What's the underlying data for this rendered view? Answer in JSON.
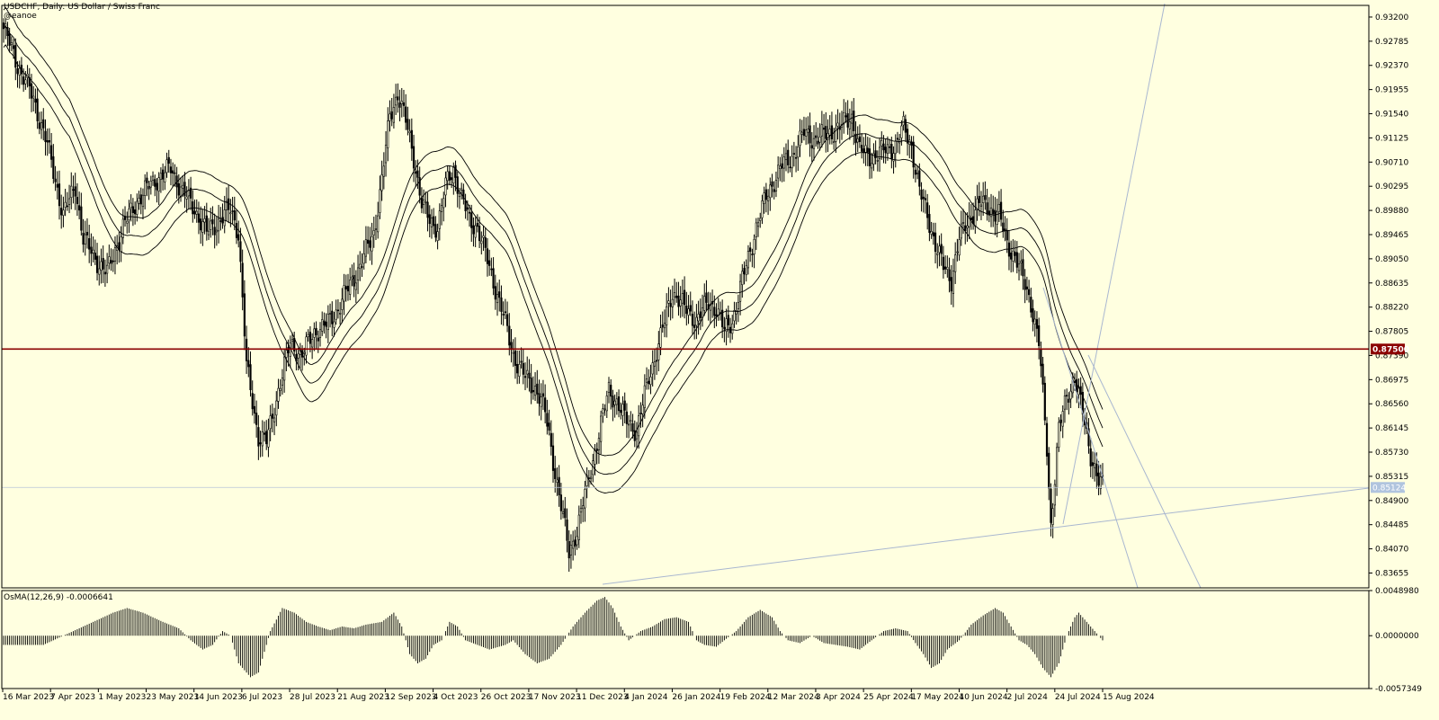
{
  "header": {
    "title": "USDCHF, Daily:  US Dollar / Swiss Franc",
    "author": "@eanoe"
  },
  "osma": {
    "label": "OsMA(12,26,9) -0.0006641"
  },
  "colors": {
    "background": "#ffffe0",
    "candle": "#000000",
    "level_line": "#8b0000",
    "level_badge": "#8b0000",
    "price_badge": "#b0c4de",
    "trendline": "#a9b7d0"
  },
  "chart_data": [
    {
      "type": "candlestick",
      "title": "USDCHF, Daily:  US Dollar / Swiss Franc",
      "ylim": [
        0.834,
        0.934
      ],
      "y_ticks": [
        "0.93200",
        "0.92785",
        "0.92370",
        "0.91955",
        "0.91540",
        "0.91125",
        "0.90710",
        "0.90295",
        "0.89880",
        "0.89465",
        "0.89050",
        "0.88635",
        "0.88220",
        "0.87805",
        "0.87390",
        "0.86975",
        "0.86560",
        "0.86145",
        "0.85730",
        "0.85315",
        "0.84900",
        "0.84485",
        "0.84070",
        "0.83655"
      ],
      "x_ticks": [
        "16 Mar 2023",
        "7 Apr 2023",
        "1 May 2023",
        "23 May 2023",
        "14 Jun 2023",
        "6 Jul 2023",
        "28 Jul 2023",
        "21 Aug 2023",
        "12 Sep 2023",
        "4 Oct 2023",
        "26 Oct 2023",
        "17 Nov 2023",
        "11 Dec 2023",
        "4 Jan 2024",
        "26 Jan 2024",
        "19 Feb 2024",
        "12 Mar 2024",
        "3 Apr 2024",
        "25 Apr 2024",
        "17 May 2024",
        "10 Jun 2024",
        "2 Jul 2024",
        "24 Jul 2024",
        "15 Aug 2024"
      ],
      "level_line": {
        "value": 0.875,
        "label": "0.87500"
      },
      "current_price": {
        "value": 0.85124,
        "label": "0.85124"
      },
      "close_path": [
        [
          0,
          0.93
        ],
        [
          8,
          0.923
        ],
        [
          15,
          0.918
        ],
        [
          22,
          0.91
        ],
        [
          30,
          0.898
        ],
        [
          36,
          0.903
        ],
        [
          40,
          0.894
        ],
        [
          45,
          0.891
        ],
        [
          52,
          0.888
        ],
        [
          56,
          0.892
        ],
        [
          60,
          0.896
        ],
        [
          68,
          0.901
        ],
        [
          76,
          0.904
        ],
        [
          84,
          0.906
        ],
        [
          90,
          0.902
        ],
        [
          96,
          0.899
        ],
        [
          102,
          0.895
        ],
        [
          108,
          0.897
        ],
        [
          114,
          0.899
        ],
        [
          118,
          0.895
        ],
        [
          122,
          0.872
        ],
        [
          128,
          0.86
        ],
        [
          132,
          0.859
        ],
        [
          138,
          0.868
        ],
        [
          144,
          0.876
        ],
        [
          150,
          0.874
        ],
        [
          156,
          0.878
        ],
        [
          162,
          0.879
        ],
        [
          168,
          0.882
        ],
        [
          174,
          0.886
        ],
        [
          180,
          0.89
        ],
        [
          186,
          0.895
        ],
        [
          190,
          0.904
        ],
        [
          194,
          0.915
        ],
        [
          198,
          0.919
        ],
        [
          202,
          0.914
        ],
        [
          206,
          0.908
        ],
        [
          210,
          0.9
        ],
        [
          214,
          0.897
        ],
        [
          218,
          0.896
        ],
        [
          222,
          0.903
        ],
        [
          226,
          0.906
        ],
        [
          230,
          0.901
        ],
        [
          234,
          0.897
        ],
        [
          238,
          0.896
        ],
        [
          244,
          0.889
        ],
        [
          250,
          0.882
        ],
        [
          256,
          0.874
        ],
        [
          262,
          0.87
        ],
        [
          268,
          0.868
        ],
        [
          272,
          0.864
        ],
        [
          276,
          0.856
        ],
        [
          280,
          0.848
        ],
        [
          284,
          0.84
        ],
        [
          288,
          0.844
        ],
        [
          292,
          0.85
        ],
        [
          296,
          0.856
        ],
        [
          300,
          0.862
        ],
        [
          304,
          0.868
        ],
        [
          308,
          0.866
        ],
        [
          312,
          0.863
        ],
        [
          318,
          0.861
        ],
        [
          324,
          0.87
        ],
        [
          330,
          0.877
        ],
        [
          336,
          0.885
        ],
        [
          342,
          0.882
        ],
        [
          348,
          0.88
        ],
        [
          354,
          0.883
        ],
        [
          358,
          0.882
        ],
        [
          362,
          0.878
        ],
        [
          366,
          0.88
        ],
        [
          372,
          0.888
        ],
        [
          378,
          0.896
        ],
        [
          384,
          0.902
        ],
        [
          390,
          0.906
        ],
        [
          396,
          0.908
        ],
        [
          402,
          0.912
        ],
        [
          408,
          0.911
        ],
        [
          414,
          0.912
        ],
        [
          420,
          0.913
        ],
        [
          426,
          0.915
        ],
        [
          430,
          0.909
        ],
        [
          436,
          0.908
        ],
        [
          442,
          0.909
        ],
        [
          448,
          0.91
        ],
        [
          452,
          0.913
        ],
        [
          456,
          0.91
        ],
        [
          460,
          0.902
        ],
        [
          464,
          0.898
        ],
        [
          468,
          0.893
        ],
        [
          472,
          0.889
        ],
        [
          476,
          0.887
        ],
        [
          480,
          0.894
        ],
        [
          486,
          0.898
        ],
        [
          490,
          0.9
        ],
        [
          496,
          0.899
        ],
        [
          500,
          0.898
        ],
        [
          504,
          0.893
        ],
        [
          508,
          0.891
        ],
        [
          512,
          0.887
        ],
        [
          516,
          0.883
        ],
        [
          520,
          0.876
        ],
        [
          524,
          0.858
        ],
        [
          526,
          0.845
        ],
        [
          530,
          0.861
        ],
        [
          534,
          0.867
        ],
        [
          538,
          0.87
        ],
        [
          542,
          0.864
        ],
        [
          546,
          0.857
        ],
        [
          550,
          0.852
        ],
        [
          552,
          0.8512
        ]
      ],
      "bands": {
        "periods": 34,
        "offsets": [
          -0.0032,
          0,
          0.0032
        ]
      }
    },
    {
      "type": "histogram",
      "title": "OsMA(12,26,9) -0.0006641",
      "ylim": [
        -0.0057349,
        0.004898
      ],
      "y_ticks": [
        "0.0048980",
        "0.0000000",
        "-0.0057349"
      ],
      "value_path": [
        [
          0,
          -0.001
        ],
        [
          20,
          -0.001
        ],
        [
          35,
          0.0005
        ],
        [
          45,
          0.0015
        ],
        [
          55,
          0.0025
        ],
        [
          62,
          0.003
        ],
        [
          70,
          0.0025
        ],
        [
          80,
          0.0015
        ],
        [
          88,
          0.0008
        ],
        [
          94,
          -0.0005
        ],
        [
          100,
          -0.0015
        ],
        [
          105,
          -0.001
        ],
        [
          110,
          0.0005
        ],
        [
          114,
          0.0
        ],
        [
          118,
          -0.003
        ],
        [
          124,
          -0.0045
        ],
        [
          128,
          -0.004
        ],
        [
          134,
          0.0005
        ],
        [
          140,
          0.003
        ],
        [
          146,
          0.0025
        ],
        [
          152,
          0.0015
        ],
        [
          158,
          0.001
        ],
        [
          164,
          0.0006
        ],
        [
          170,
          0.001
        ],
        [
          176,
          0.0008
        ],
        [
          182,
          0.0012
        ],
        [
          190,
          0.0015
        ],
        [
          196,
          0.0025
        ],
        [
          200,
          0.001
        ],
        [
          204,
          -0.002
        ],
        [
          208,
          -0.003
        ],
        [
          212,
          -0.0025
        ],
        [
          216,
          -0.001
        ],
        [
          220,
          -0.0005
        ],
        [
          224,
          0.0015
        ],
        [
          228,
          0.001
        ],
        [
          232,
          -0.0005
        ],
        [
          238,
          -0.001
        ],
        [
          244,
          -0.0015
        ],
        [
          252,
          -0.001
        ],
        [
          256,
          -0.0005
        ],
        [
          262,
          -0.002
        ],
        [
          268,
          -0.003
        ],
        [
          274,
          -0.0025
        ],
        [
          280,
          -0.001
        ],
        [
          286,
          0.001
        ],
        [
          292,
          0.0025
        ],
        [
          298,
          0.0038
        ],
        [
          302,
          0.0042
        ],
        [
          306,
          0.003
        ],
        [
          310,
          0.001
        ],
        [
          314,
          -0.0005
        ],
        [
          320,
          0.0005
        ],
        [
          326,
          0.001
        ],
        [
          332,
          0.0018
        ],
        [
          338,
          0.002
        ],
        [
          344,
          0.0015
        ],
        [
          348,
          -0.0005
        ],
        [
          352,
          -0.001
        ],
        [
          358,
          -0.0012
        ],
        [
          362,
          -0.0005
        ],
        [
          368,
          0.0005
        ],
        [
          374,
          0.002
        ],
        [
          380,
          0.0028
        ],
        [
          386,
          0.002
        ],
        [
          390,
          0.0005
        ],
        [
          394,
          -0.0005
        ],
        [
          400,
          -0.0008
        ],
        [
          406,
          0.0
        ],
        [
          412,
          -0.0008
        ],
        [
          418,
          -0.001
        ],
        [
          424,
          -0.0012
        ],
        [
          430,
          -0.0015
        ],
        [
          436,
          -0.0005
        ],
        [
          442,
          0.0005
        ],
        [
          448,
          0.0008
        ],
        [
          454,
          0.0005
        ],
        [
          458,
          -0.0008
        ],
        [
          462,
          -0.002
        ],
        [
          466,
          -0.0035
        ],
        [
          470,
          -0.003
        ],
        [
          474,
          -0.0015
        ],
        [
          480,
          -0.0005
        ],
        [
          486,
          0.0012
        ],
        [
          492,
          0.0022
        ],
        [
          498,
          0.003
        ],
        [
          502,
          0.0025
        ],
        [
          506,
          0.001
        ],
        [
          510,
          -0.0005
        ],
        [
          514,
          -0.001
        ],
        [
          518,
          -0.002
        ],
        [
          522,
          -0.0035
        ],
        [
          526,
          -0.0045
        ],
        [
          530,
          -0.003
        ],
        [
          534,
          0.0
        ],
        [
          538,
          0.002
        ],
        [
          540,
          0.0025
        ],
        [
          544,
          0.0015
        ],
        [
          548,
          0.0005
        ],
        [
          552,
          -0.0005
        ]
      ]
    }
  ]
}
